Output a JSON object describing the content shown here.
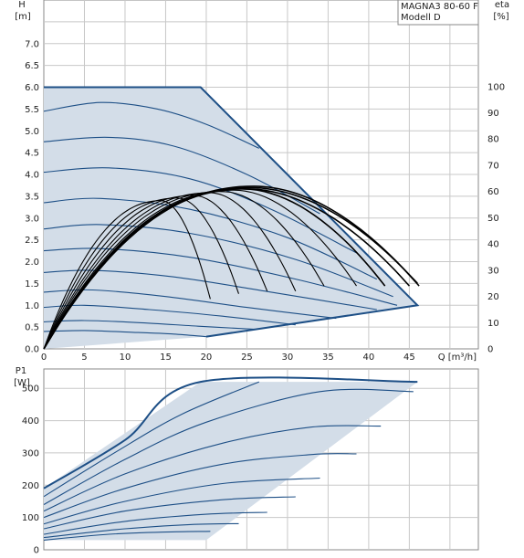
{
  "chart_data": [
    {
      "type": "line",
      "panel": "head",
      "ylabel": "H",
      "yunit": "[m]",
      "y2label": "eta",
      "y2unit": "[%]",
      "xlabel": "Q [m³/h]",
      "model_box": [
        "MAGNA3 80-60 F",
        "Modell D"
      ],
      "xlim": [
        0,
        53.5
      ],
      "ylim": [
        0,
        8.0
      ],
      "y2lim": [
        0,
        133
      ],
      "x_ticks": [
        "0",
        "5",
        "10",
        "15",
        "20",
        "25",
        "30",
        "35",
        "40",
        "45"
      ],
      "y_ticks": [
        "0.0",
        "0.5",
        "1.0",
        "1.5",
        "2.0",
        "2.5",
        "3.0",
        "3.5",
        "4.0",
        "4.5",
        "5.0",
        "5.5",
        "6.0",
        "6.5",
        "7.0"
      ],
      "y2_ticks": [
        "0",
        "10",
        "20",
        "30",
        "40",
        "50",
        "60",
        "70",
        "80",
        "90",
        "100"
      ],
      "grid": true,
      "region": [
        [
          0,
          0
        ],
        [
          0,
          6.0
        ],
        [
          19.3,
          6.0
        ],
        [
          46,
          1.0
        ],
        [
          20,
          0.28
        ],
        [
          0,
          0
        ]
      ],
      "head_curves": [
        {
          "shutoff_head": 6.0,
          "end": [
            19.3,
            6.0
          ],
          "points": [
            [
              0,
              6.0
            ],
            [
              19.3,
              6.0
            ]
          ]
        },
        {
          "shutoff_head": 5.45,
          "end": [
            26.5,
            4.6
          ],
          "points": [
            [
              0,
              5.45
            ],
            [
              7,
              5.65
            ],
            [
              14,
              5.5
            ],
            [
              20,
              5.15
            ],
            [
              26.5,
              4.6
            ]
          ]
        },
        {
          "shutoff_head": 4.75,
          "end": [
            34,
            3.1
          ],
          "points": [
            [
              0,
              4.75
            ],
            [
              8,
              4.85
            ],
            [
              16,
              4.65
            ],
            [
              25,
              4.0
            ],
            [
              34,
              3.1
            ]
          ]
        },
        {
          "shutoff_head": 4.05,
          "end": [
            38.5,
            2.2
          ],
          "points": [
            [
              0,
              4.05
            ],
            [
              8,
              4.15
            ],
            [
              18,
              3.9
            ],
            [
              28,
              3.2
            ],
            [
              38.5,
              2.2
            ]
          ]
        },
        {
          "shutoff_head": 3.35,
          "end": [
            41,
            1.6
          ],
          "points": [
            [
              0,
              3.35
            ],
            [
              7,
              3.45
            ],
            [
              18,
              3.2
            ],
            [
              30,
              2.55
            ],
            [
              41,
              1.6
            ]
          ]
        },
        {
          "shutoff_head": 2.75,
          "end": [
            43,
            1.2
          ],
          "points": [
            [
              0,
              2.75
            ],
            [
              7,
              2.85
            ],
            [
              18,
              2.65
            ],
            [
              31,
              2.05
            ],
            [
              43,
              1.2
            ]
          ]
        },
        {
          "shutoff_head": 2.25,
          "end": [
            43.5,
            1.0
          ],
          "points": [
            [
              0,
              2.25
            ],
            [
              7,
              2.3
            ],
            [
              18,
              2.1
            ],
            [
              31,
              1.6
            ],
            [
              43.5,
              1.0
            ]
          ]
        },
        {
          "shutoff_head": 1.75,
          "end": [
            41,
            0.9
          ],
          "points": [
            [
              0,
              1.75
            ],
            [
              6,
              1.8
            ],
            [
              16,
              1.65
            ],
            [
              28,
              1.3
            ],
            [
              41,
              0.9
            ]
          ]
        },
        {
          "shutoff_head": 1.3,
          "end": [
            36,
            0.7
          ],
          "points": [
            [
              0,
              1.3
            ],
            [
              6,
              1.35
            ],
            [
              15,
              1.2
            ],
            [
              25,
              0.95
            ],
            [
              36,
              0.7
            ]
          ]
        },
        {
          "shutoff_head": 0.95,
          "end": [
            31,
            0.55
          ],
          "points": [
            [
              0,
              0.95
            ],
            [
              5,
              1.0
            ],
            [
              13,
              0.9
            ],
            [
              22,
              0.75
            ],
            [
              31,
              0.55
            ]
          ]
        },
        {
          "shutoff_head": 0.62,
          "end": [
            26,
            0.45
          ],
          "points": [
            [
              0,
              0.62
            ],
            [
              5,
              0.65
            ],
            [
              12,
              0.6
            ],
            [
              19,
              0.52
            ],
            [
              26,
              0.45
            ]
          ]
        },
        {
          "shutoff_head": 0.4,
          "end": [
            20,
            0.28
          ],
          "points": [
            [
              0,
              0.4
            ],
            [
              5,
              0.42
            ],
            [
              11,
              0.38
            ],
            [
              16,
              0.34
            ],
            [
              20,
              0.28
            ]
          ]
        }
      ],
      "eta_curves": [
        {
          "end_q": 46.2,
          "peak": [
            26,
            62
          ],
          "end_eta": 24
        },
        {
          "end_q": 46.0,
          "peak": [
            25.5,
            61.5
          ],
          "end_eta": 25
        },
        {
          "end_q": 45.0,
          "peak": [
            25,
            61
          ],
          "end_eta": 24
        },
        {
          "end_q": 42.0,
          "peak": [
            24.5,
            61
          ],
          "end_eta": 24
        },
        {
          "end_q": 38.5,
          "peak": [
            23.5,
            60.5
          ],
          "end_eta": 24
        },
        {
          "end_q": 34.5,
          "peak": [
            22,
            60
          ],
          "end_eta": 24
        },
        {
          "end_q": 31.0,
          "peak": [
            20.5,
            59.5
          ],
          "end_eta": 22
        },
        {
          "end_q": 27.5,
          "peak": [
            18.5,
            58.5
          ],
          "end_eta": 22
        },
        {
          "end_q": 24.0,
          "peak": [
            16.5,
            57.5
          ],
          "end_eta": 21
        },
        {
          "end_q": 20.5,
          "peak": [
            14.5,
            56.5
          ],
          "end_eta": 19
        }
      ]
    },
    {
      "type": "line",
      "panel": "power",
      "ylabel": "P1",
      "yunit": "[W]",
      "xlim": [
        0,
        53.5
      ],
      "ylim": [
        0,
        560
      ],
      "y_ticks": [
        "0",
        "100",
        "200",
        "300",
        "400",
        "500"
      ],
      "grid": true,
      "region": [
        [
          0,
          30
        ],
        [
          0,
          190
        ],
        [
          19.3,
          520
        ],
        [
          46,
          520
        ],
        [
          20,
          30
        ],
        [
          0,
          30
        ]
      ],
      "power_curves": [
        {
          "points": [
            [
              0,
              190
            ],
            [
              10,
              340
            ],
            [
              19.3,
              520
            ],
            [
              46,
              520
            ]
          ]
        },
        {
          "points": [
            [
              0,
              165
            ],
            [
              9,
              305
            ],
            [
              17,
              420
            ],
            [
              26.5,
              520
            ]
          ]
        },
        {
          "points": [
            [
              0,
              140
            ],
            [
              10,
              280
            ],
            [
              20,
              395
            ],
            [
              34,
              490
            ],
            [
              45.5,
              490
            ]
          ]
        },
        {
          "points": [
            [
              0,
              120
            ],
            [
              10,
              235
            ],
            [
              22,
              330
            ],
            [
              33,
              380
            ],
            [
              41.5,
              383
            ]
          ]
        },
        {
          "points": [
            [
              0,
              100
            ],
            [
              10,
              190
            ],
            [
              22,
              265
            ],
            [
              33,
              295
            ],
            [
              38.5,
              297
            ]
          ]
        },
        {
          "points": [
            [
              0,
              80
            ],
            [
              10,
              150
            ],
            [
              22,
              205
            ],
            [
              34,
              222
            ]
          ]
        },
        {
          "points": [
            [
              0,
              65
            ],
            [
              10,
              120
            ],
            [
              22,
              155
            ],
            [
              31,
              164
            ]
          ]
        },
        {
          "points": [
            [
              0,
              48
            ],
            [
              10,
              88
            ],
            [
              20,
              110
            ],
            [
              27.5,
              116
            ]
          ]
        },
        {
          "points": [
            [
              0,
              38
            ],
            [
              10,
              65
            ],
            [
              18,
              78
            ],
            [
              24,
              81
            ]
          ]
        },
        {
          "points": [
            [
              0,
              30
            ],
            [
              8,
              48
            ],
            [
              15,
              55
            ],
            [
              20.5,
              57
            ]
          ]
        }
      ]
    }
  ]
}
